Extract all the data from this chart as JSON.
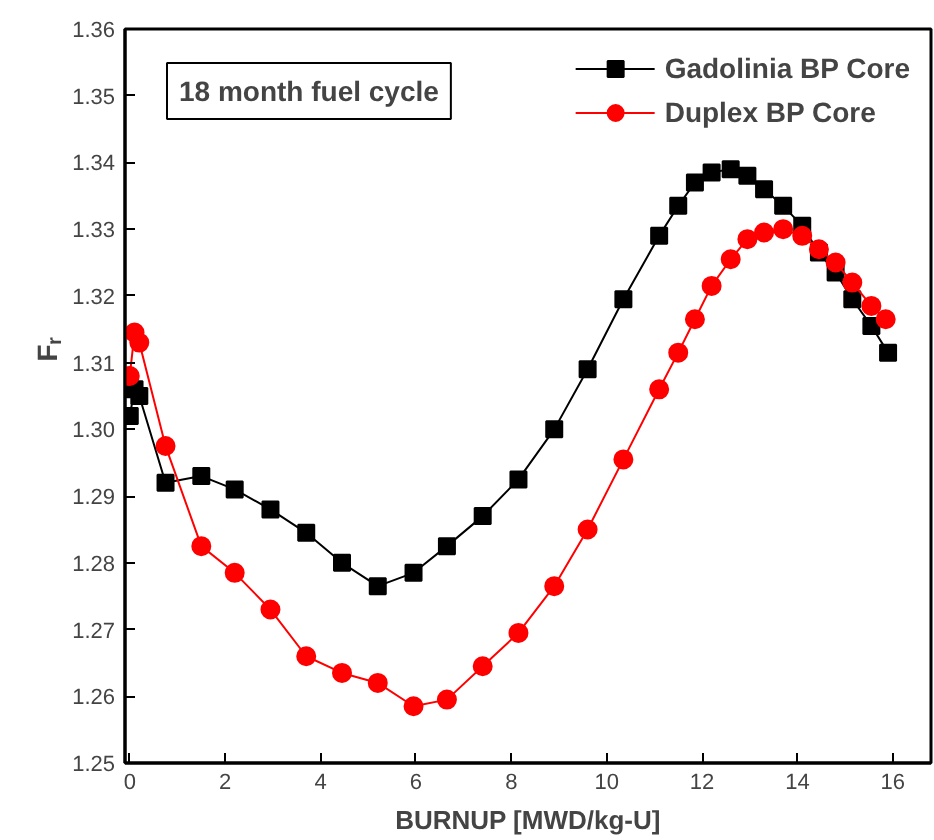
{
  "chart_data": {
    "type": "line",
    "title": "18 month fuel cycle",
    "xlabel": "BURNUP [MWD/kg-U]",
    "ylabel": "F$_{r}$",
    "x": [
      0,
      0.1,
      0.2,
      0.75,
      1.5,
      2.2,
      2.95,
      3.7,
      4.45,
      5.2,
      5.95,
      6.65,
      7.4,
      8.15,
      8.9,
      9.6,
      10.35,
      11.1,
      11.5,
      11.85,
      12.2,
      12.6,
      12.95,
      13.3,
      13.7,
      14.1,
      14.45,
      14.8,
      15.15,
      15.55,
      15.9
    ],
    "series": [
      {
        "name": "Gadolinia BP Core",
        "color": "#000000",
        "marker": "square",
        "values": [
          1.302,
          1.306,
          1.305,
          1.292,
          1.293,
          1.291,
          1.288,
          1.2845,
          1.28,
          1.2765,
          1.2785,
          1.2825,
          1.287,
          1.2925,
          1.3,
          1.309,
          1.3195,
          1.329,
          1.3335,
          1.337,
          1.3385,
          1.339,
          1.338,
          1.336,
          1.3335,
          1.3305,
          1.3265,
          1.3235,
          1.3195,
          1.3155,
          1.3115
        ]
      },
      {
        "name": "Duplex BP Core",
        "color": "#ff0000",
        "marker": "circle",
        "x": [
          0,
          0.1,
          0.2,
          0.75,
          1.5,
          2.2,
          2.95,
          3.7,
          4.45,
          5.2,
          5.95,
          6.65,
          7.4,
          8.15,
          8.9,
          9.6,
          10.35,
          11.1,
          11.5,
          11.85,
          12.2,
          12.6,
          12.95,
          13.3,
          13.7,
          14.1,
          14.45,
          14.8,
          15.15,
          15.55,
          15.85
        ],
        "values": [
          1.308,
          1.3145,
          1.313,
          1.2975,
          1.2825,
          1.2785,
          1.273,
          1.266,
          1.2635,
          1.262,
          1.2585,
          1.2595,
          1.2645,
          1.2695,
          1.2765,
          1.285,
          1.2955,
          1.306,
          1.3115,
          1.3165,
          1.3215,
          1.3255,
          1.3285,
          1.3295,
          1.33,
          1.329,
          1.327,
          1.325,
          1.322,
          1.3185,
          1.3165
        ]
      }
    ],
    "xlim": [
      -0.1,
      16.8
    ],
    "xticks": [
      0,
      2,
      4,
      6,
      8,
      10,
      12,
      14,
      16
    ],
    "ylim": [
      1.25,
      1.36
    ],
    "yticks": [
      1.25,
      1.26,
      1.27,
      1.28,
      1.29,
      {
        "value": 1.3,
        "label": "1.30"
      },
      1.31,
      1.32,
      1.33,
      1.34,
      1.35,
      1.36
    ],
    "grid": false,
    "legend": "top right",
    "line_style": "solid"
  }
}
